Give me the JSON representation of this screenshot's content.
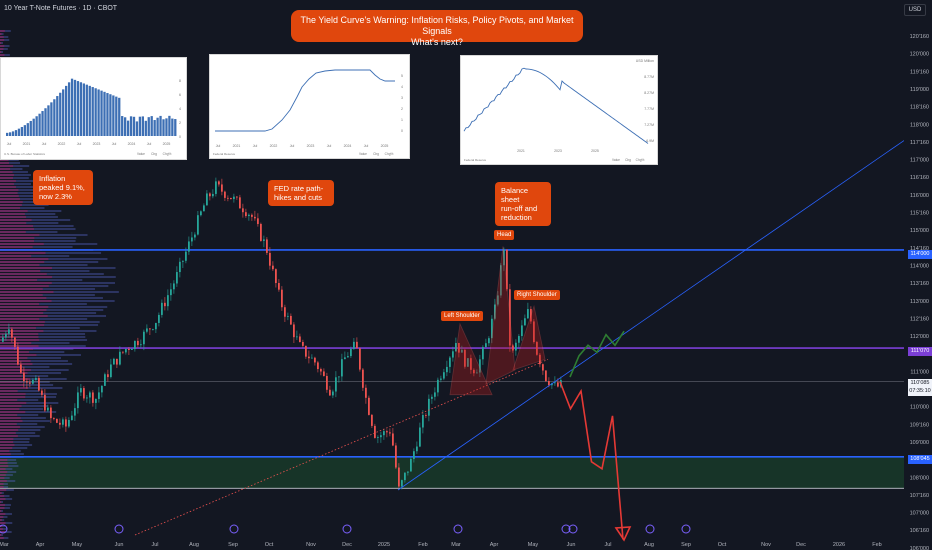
{
  "header": {
    "symbol": "10 Year T-Note Futures · 1D · CBOT"
  },
  "title": {
    "line1": "The Yield Curve's Warning: Inflation Risks, Policy Pivots, and Market Signals",
    "line2": "What's next?"
  },
  "currency": "USD",
  "callouts": {
    "inflation": [
      "Inflation",
      "peaked 9.1%,",
      "now 2.3%"
    ],
    "fed": [
      "FED rate path-",
      "hikes and cuts"
    ],
    "balance": [
      "Balance sheet",
      "run-off and",
      "reduction"
    ]
  },
  "pattern_labels": {
    "left": "Left Shoulder",
    "head": "Head",
    "right": "Right Shoulder"
  },
  "price_badges": {
    "upper": "114'000",
    "mid": "111'070",
    "current": "110'085",
    "countdown": "07:35:10",
    "lower": "108'045"
  },
  "thumbnails": {
    "cpi": {
      "x_labels": [
        "Jul",
        "2021",
        "Jul",
        "2022",
        "Jul",
        "2023",
        "Jul",
        "2024",
        "Jul",
        "2025"
      ],
      "y_labels": [
        "8",
        "6",
        "4",
        "2",
        "0"
      ],
      "source": "U.S. Bureau of Labor Statistics",
      "footer": [
        "Value",
        "Chg",
        "Chg%"
      ]
    },
    "fed": {
      "x_labels": [
        "Jul",
        "2021",
        "Jul",
        "2022",
        "Jul",
        "2023",
        "Jul",
        "2024",
        "Jul",
        "2025"
      ],
      "y_labels": [
        "5",
        "4",
        "3",
        "2",
        "1",
        "0"
      ],
      "source": "Federal Reserve",
      "footer": [
        "Value",
        "Chg",
        "Chg%"
      ]
    },
    "balance": {
      "x_labels": [
        "2021",
        "2023",
        "2025"
      ],
      "y_labels": [
        "USD Million",
        "8.77M",
        "8.27M",
        "7.77M",
        "7.27M",
        "6.9M"
      ],
      "source": "Federal Reserve",
      "footer": [
        "Value",
        "Chg",
        "Chg%"
      ]
    }
  },
  "colors": {
    "up": "#26a69a",
    "down": "#ef5350",
    "callout": "#e0470d",
    "blue_line": "#2962ff",
    "purple_line": "#7b3fd6",
    "green_zone": "#1b4d2e",
    "bg": "#131722"
  },
  "chart_data": {
    "type": "candlestick",
    "x_tick_labels": [
      "Mar",
      "Apr",
      "May",
      "Jun",
      "Jul",
      "Aug",
      "Sep",
      "Oct",
      "Nov",
      "Dec",
      "2025",
      "Feb",
      "Mar",
      "Apr",
      "May",
      "Jun",
      "Jul",
      "Aug",
      "Sep",
      "Oct",
      "Nov",
      "Dec",
      "2026",
      "Feb"
    ],
    "y_tick_labels": [
      "120'160",
      "120'000",
      "119'160",
      "119'000",
      "118'160",
      "118'000",
      "117'160",
      "117'000",
      "116'160",
      "116'000",
      "115'160",
      "115'000",
      "114'160",
      "114'000",
      "113'160",
      "113'000",
      "112'160",
      "112'000",
      "111'160",
      "111'000",
      "110'160",
      "110'000",
      "109'160",
      "109'000",
      "108'160",
      "108'000",
      "107'160",
      "107'000",
      "106'160",
      "106'000"
    ],
    "key_levels": [
      114.0,
      111.22,
      108.14
    ],
    "current_price": 110.27,
    "zone": [
      107.25,
      108.14
    ],
    "pattern": "head-and-shoulders",
    "projection_down": [
      110.27,
      109.5,
      110.0,
      108.0,
      107.8,
      109.3,
      105.8
    ],
    "projection_up": [
      110.4,
      111.0,
      111.3,
      111.1,
      111.6,
      111.3,
      111.7
    ]
  }
}
